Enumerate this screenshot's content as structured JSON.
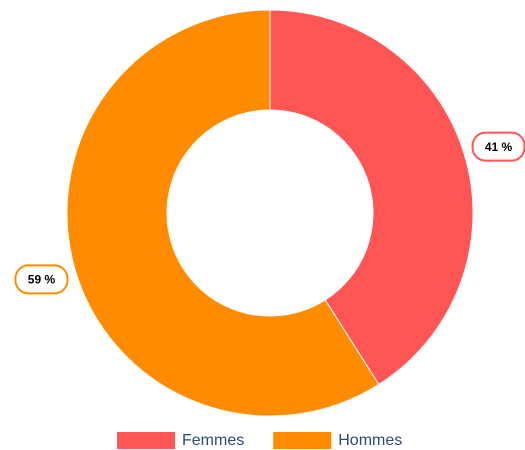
{
  "chart_data": {
    "type": "donut",
    "categories": [
      "Femmes",
      "Hommes"
    ],
    "values": [
      41,
      59
    ],
    "value_labels": [
      "41 %",
      "59 %"
    ],
    "colors": [
      "#ff5555",
      "#ff8c00"
    ],
    "legend": "bottom"
  }
}
